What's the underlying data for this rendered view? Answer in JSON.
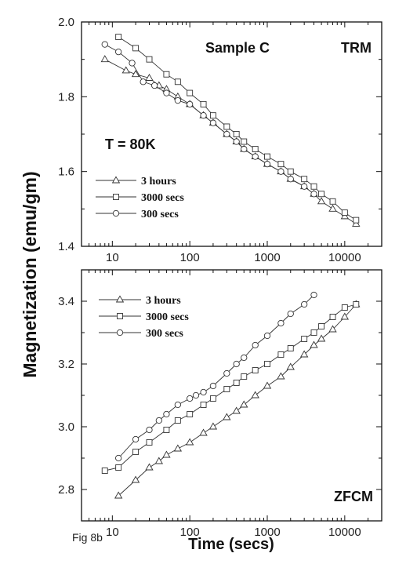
{
  "caption": "Fig 8b",
  "shared_ylabel": "Magnetization (emu/gm)",
  "chart_data": [
    {
      "type": "scatter",
      "panel": "top",
      "xscale": "log",
      "xlim": [
        4,
        30000
      ],
      "ylim": [
        1.4,
        2.0
      ],
      "xticks": [
        10,
        100,
        1000,
        10000
      ],
      "xtick_labels": [
        "10",
        "100",
        "1000",
        "10000"
      ],
      "yticks": [
        1.4,
        1.6,
        1.8,
        2.0
      ],
      "ytick_labels": [
        "1.4",
        "1.6",
        "1.8",
        "2.0"
      ],
      "xlabel": "",
      "ylabel": "Magnetization (emu/gm)",
      "annotations": [
        {
          "text": "Sample C",
          "position": "top-center"
        },
        {
          "text": "TRM",
          "position": "top-right"
        },
        {
          "text": "T = 80K",
          "position": "middle-left"
        }
      ],
      "legend_position": "lower-left",
      "series": [
        {
          "name": "3 hours",
          "marker": "triangle",
          "x": [
            8,
            15,
            20,
            30,
            40,
            50,
            70,
            100,
            150,
            200,
            300,
            400,
            500,
            700,
            1000,
            1500,
            2000,
            3000,
            4000,
            5000,
            7000,
            10000,
            14000
          ],
          "y": [
            1.9,
            1.87,
            1.86,
            1.85,
            1.83,
            1.82,
            1.8,
            1.78,
            1.75,
            1.73,
            1.7,
            1.68,
            1.66,
            1.64,
            1.62,
            1.6,
            1.58,
            1.56,
            1.54,
            1.52,
            1.5,
            1.48,
            1.46
          ]
        },
        {
          "name": "3000 secs",
          "marker": "square",
          "x": [
            12,
            20,
            30,
            50,
            70,
            100,
            150,
            200,
            300,
            400,
            500,
            700,
            1000,
            1500,
            2000,
            3000,
            4000,
            5000,
            7000,
            10000,
            14000
          ],
          "y": [
            1.96,
            1.93,
            1.9,
            1.86,
            1.84,
            1.81,
            1.78,
            1.75,
            1.72,
            1.7,
            1.68,
            1.66,
            1.64,
            1.62,
            1.6,
            1.58,
            1.56,
            1.54,
            1.52,
            1.49,
            1.47
          ]
        },
        {
          "name": "300 secs",
          "marker": "circle",
          "x": [
            8,
            12,
            18,
            25,
            35,
            50,
            70,
            100,
            150,
            200,
            300,
            400,
            500,
            700,
            1000,
            1500,
            2000,
            3000,
            4000
          ],
          "y": [
            1.94,
            1.92,
            1.89,
            1.84,
            1.83,
            1.81,
            1.79,
            1.78,
            1.75,
            1.73,
            1.7,
            1.68,
            1.66,
            1.64,
            1.62,
            1.6,
            1.58,
            1.56,
            1.54
          ]
        }
      ]
    },
    {
      "type": "scatter",
      "panel": "bottom",
      "xscale": "log",
      "xlim": [
        4,
        30000
      ],
      "ylim": [
        2.7,
        3.5
      ],
      "xticks": [
        10,
        100,
        1000,
        10000
      ],
      "xtick_labels": [
        "10",
        "100",
        "1000",
        "10000"
      ],
      "yticks": [
        2.8,
        3.0,
        3.2,
        3.4
      ],
      "ytick_labels": [
        "2.8",
        "3.0",
        "3.2",
        "3.4"
      ],
      "xlabel": "Time (secs)",
      "ylabel": "Magnetization (emu/gm)",
      "annotations": [
        {
          "text": "ZFCM",
          "position": "bottom-right"
        }
      ],
      "legend_position": "top-left",
      "series": [
        {
          "name": "3 hours",
          "marker": "triangle",
          "x": [
            12,
            20,
            30,
            40,
            50,
            70,
            100,
            150,
            200,
            300,
            400,
            500,
            700,
            1000,
            1500,
            2000,
            3000,
            4000,
            5000,
            7000,
            10000,
            14000
          ],
          "y": [
            2.78,
            2.83,
            2.87,
            2.89,
            2.91,
            2.93,
            2.95,
            2.98,
            3.0,
            3.03,
            3.05,
            3.07,
            3.1,
            3.13,
            3.16,
            3.19,
            3.23,
            3.26,
            3.28,
            3.31,
            3.35,
            3.39
          ]
        },
        {
          "name": "3000 secs",
          "marker": "square",
          "x": [
            8,
            12,
            20,
            30,
            50,
            70,
            100,
            150,
            200,
            300,
            400,
            500,
            700,
            1000,
            1500,
            2000,
            3000,
            4000,
            5000,
            7000,
            10000,
            14000
          ],
          "y": [
            2.86,
            2.87,
            2.92,
            2.95,
            2.99,
            3.02,
            3.04,
            3.07,
            3.09,
            3.12,
            3.14,
            3.16,
            3.18,
            3.2,
            3.23,
            3.25,
            3.28,
            3.3,
            3.32,
            3.35,
            3.38,
            3.39
          ]
        },
        {
          "name": "300 secs",
          "marker": "circle",
          "x": [
            12,
            20,
            30,
            40,
            50,
            70,
            100,
            120,
            150,
            200,
            300,
            400,
            500,
            700,
            1000,
            1500,
            2000,
            3000,
            4000
          ],
          "y": [
            2.9,
            2.96,
            2.99,
            3.02,
            3.04,
            3.07,
            3.09,
            3.1,
            3.11,
            3.13,
            3.17,
            3.2,
            3.22,
            3.26,
            3.29,
            3.33,
            3.36,
            3.39,
            3.42
          ]
        }
      ]
    }
  ]
}
